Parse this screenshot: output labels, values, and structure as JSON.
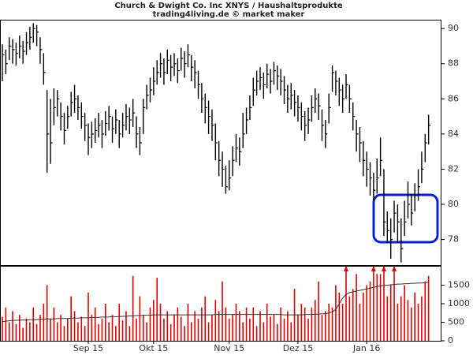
{
  "chart_data": [
    {
      "type": "ohlc",
      "title": "Church & Dwight Co. Inc XNYS / Haushaltsprodukte",
      "subtitle": "trading4living.de © market maker",
      "categories": [
        null,
        null,
        null,
        null,
        null,
        null,
        null,
        null,
        null,
        null,
        null,
        null,
        null,
        null,
        null,
        null,
        null,
        null,
        null,
        null,
        null,
        null,
        null,
        null,
        null,
        "Sep 15",
        null,
        null,
        null,
        null,
        null,
        null,
        null,
        null,
        null,
        null,
        null,
        null,
        null,
        null,
        null,
        null,
        null,
        null,
        "Okt 15",
        null,
        null,
        null,
        null,
        null,
        null,
        null,
        null,
        null,
        null,
        null,
        null,
        null,
        null,
        null,
        null,
        null,
        null,
        null,
        null,
        null,
        "Nov 15",
        null,
        null,
        null,
        null,
        null,
        null,
        null,
        null,
        null,
        null,
        null,
        null,
        null,
        null,
        null,
        null,
        null,
        null,
        null,
        "Dez 15",
        null,
        null,
        null,
        null,
        null,
        null,
        null,
        null,
        null,
        null,
        null,
        null,
        null,
        null,
        null,
        null,
        null,
        null,
        null,
        "Jan 16",
        null,
        null,
        null,
        null,
        null,
        null,
        null,
        null,
        null,
        null,
        null,
        null,
        null,
        null,
        null,
        null,
        null,
        null
      ],
      "high": [
        89.1,
        88.8,
        89.5,
        89.4,
        89.2,
        89.6,
        89.3,
        89.8,
        90.1,
        90.3,
        90.2,
        89.5,
        88.6,
        86.5,
        86.0,
        86.6,
        86.5,
        85.8,
        85.2,
        85.6,
        86.4,
        86.8,
        86.2,
        85.8,
        85.2,
        84.6,
        84.7,
        84.9,
        85.2,
        84.8,
        85.3,
        85.6,
        85.0,
        85.4,
        84.8,
        85.2,
        85.7,
        85.5,
        86.0,
        85.0,
        84.4,
        86.0,
        86.8,
        87.2,
        87.8,
        88.2,
        88.6,
        88.3,
        88.8,
        88.5,
        88.6,
        88.3,
        88.9,
        88.7,
        89.1,
        88.5,
        88.2,
        87.6,
        86.9,
        86.3,
        85.9,
        85.4,
        84.6,
        83.6,
        83.0,
        82.2,
        82.5,
        83.3,
        84.0,
        83.8,
        85.2,
        85.5,
        86.2,
        87.2,
        87.6,
        87.8,
        87.5,
        88.0,
        87.7,
        88.1,
        87.9,
        87.7,
        87.3,
        86.8,
        86.9,
        86.5,
        86.2,
        85.8,
        85.3,
        85.5,
        86.2,
        86.6,
        86.3,
        85.4,
        84.8,
        86.3,
        87.9,
        87.6,
        87.2,
        86.8,
        87.4,
        86.8,
        85.8,
        84.8,
        84.4,
        83.6,
        83.0,
        82.4,
        81.8,
        82.6,
        83.8,
        82.0,
        79.6,
        79.2,
        80.2,
        80.0,
        79.2,
        80.2,
        81.3,
        80.6,
        81.2,
        82.0,
        83.0,
        84.0,
        85.1
      ],
      "low": [
        87.0,
        87.4,
        88.2,
        88.0,
        87.9,
        88.3,
        88.0,
        88.5,
        88.8,
        89.2,
        89.0,
        88.0,
        86.8,
        81.8,
        82.3,
        84.5,
        85.0,
        84.2,
        83.4,
        84.3,
        85.0,
        85.2,
        84.8,
        84.3,
        83.6,
        82.8,
        83.2,
        83.5,
        83.8,
        83.2,
        83.9,
        84.2,
        83.5,
        84.0,
        83.2,
        83.8,
        84.2,
        84.0,
        84.4,
        83.2,
        82.8,
        84.0,
        85.4,
        85.8,
        86.2,
        86.8,
        87.2,
        86.8,
        87.4,
        87.0,
        87.3,
        86.9,
        87.6,
        87.2,
        87.8,
        87.0,
        86.6,
        86.0,
        85.2,
        84.6,
        84.0,
        83.6,
        82.5,
        81.6,
        81.0,
        80.6,
        80.8,
        81.6,
        82.4,
        82.2,
        83.2,
        84.0,
        84.8,
        85.6,
        86.2,
        86.5,
        86.0,
        86.6,
        86.3,
        86.8,
        86.5,
        86.2,
        85.7,
        85.2,
        85.4,
        85.0,
        84.7,
        84.2,
        83.6,
        84.0,
        84.7,
        85.2,
        84.8,
        83.6,
        83.2,
        84.6,
        86.4,
        86.2,
        85.6,
        85.2,
        86.0,
        85.2,
        84.2,
        83.0,
        82.4,
        81.6,
        81.0,
        80.5,
        80.2,
        80.6,
        81.6,
        78.2,
        77.8,
        76.9,
        78.4,
        77.8,
        76.7,
        78.2,
        79.2,
        78.8,
        79.6,
        80.2,
        81.2,
        82.4,
        83.4
      ],
      "close": [
        88.5,
        88.0,
        89.0,
        88.8,
        88.6,
        89.0,
        88.7,
        89.2,
        89.5,
        90.0,
        89.8,
        88.8,
        87.5,
        84.0,
        83.5,
        85.5,
        86.0,
        85.0,
        84.2,
        85.0,
        85.8,
        86.0,
        85.5,
        85.0,
        84.5,
        83.8,
        84.0,
        84.2,
        84.5,
        84.0,
        84.6,
        85.0,
        84.3,
        84.8,
        84.0,
        84.5,
        85.0,
        84.8,
        85.2,
        84.0,
        83.5,
        85.5,
        86.2,
        86.5,
        87.0,
        87.5,
        88.0,
        87.5,
        88.2,
        87.8,
        88.0,
        87.6,
        88.3,
        88.0,
        88.5,
        87.8,
        87.5,
        86.8,
        86.0,
        85.5,
        85.0,
        84.5,
        83.5,
        82.5,
        82.0,
        81.0,
        81.5,
        82.5,
        83.2,
        83.0,
        84.0,
        84.8,
        85.5,
        86.5,
        87.0,
        87.2,
        86.8,
        87.4,
        87.0,
        87.6,
        87.3,
        87.0,
        86.5,
        86.0,
        86.2,
        85.8,
        85.5,
        85.0,
        84.5,
        84.8,
        85.5,
        86.0,
        85.6,
        84.5,
        84.0,
        85.5,
        87.5,
        87.0,
        86.5,
        86.0,
        86.8,
        86.0,
        85.0,
        84.0,
        83.5,
        82.5,
        82.0,
        81.5,
        80.8,
        81.5,
        82.5,
        79.0,
        78.5,
        78.0,
        79.5,
        79.0,
        77.5,
        79.0,
        80.0,
        79.5,
        80.5,
        81.0,
        82.0,
        83.5,
        84.5
      ],
      "color": "#000000",
      "ylim": [
        76.5,
        90.5
      ],
      "yticks": [
        78,
        80,
        82,
        84,
        86,
        88,
        90
      ]
    },
    {
      "type": "bar",
      "series": [
        {
          "color": "#e00000",
          "values": [
            650,
            900,
            500,
            800,
            450,
            700,
            350,
            600,
            500,
            900,
            450,
            700,
            1000,
            1500,
            600,
            900,
            500,
            700,
            400,
            600,
            1200,
            800,
            500,
            650,
            400,
            1300,
            700,
            900,
            450,
            600,
            1000,
            500,
            700,
            400,
            1000,
            550,
            800,
            400,
            1750,
            600,
            1200,
            700,
            500,
            900,
            1100,
            1700,
            1000,
            600,
            800,
            450,
            700,
            900,
            650,
            400,
            1000,
            500,
            800,
            600,
            900,
            1200,
            500,
            700,
            1100,
            800,
            1600,
            900,
            600,
            700,
            1000,
            800,
            500,
            900,
            600,
            900,
            400,
            800,
            500,
            1000,
            650,
            700,
            450,
            900,
            600,
            800,
            500,
            1400,
            700,
            1000,
            900,
            600,
            900,
            1100,
            1600,
            700,
            800,
            1000,
            900,
            1500,
            1300,
            1000,
            2100,
            1200,
            1400,
            1800,
            1000,
            1300,
            1500,
            1600,
            2100,
            1800,
            1800,
            2100,
            1200,
            1500,
            2100,
            1000,
            1200,
            1500,
            1100,
            900,
            1300,
            1000,
            1200,
            1600,
            1750
          ]
        },
        {
          "type": "line",
          "color": "#333333",
          "values": [
            520,
            530,
            540,
            550,
            550,
            560,
            560,
            560,
            570,
            570,
            570,
            580,
            580,
            590,
            590,
            590,
            600,
            600,
            600,
            600,
            610,
            610,
            610,
            620,
            620,
            620,
            630,
            630,
            630,
            640,
            640,
            640,
            650,
            650,
            650,
            660,
            660,
            670,
            670,
            680,
            680,
            690,
            690,
            690,
            700,
            700,
            700,
            700,
            700,
            700,
            700,
            700,
            700,
            700,
            700,
            700,
            700,
            700,
            700,
            700,
            700,
            700,
            710,
            710,
            710,
            710,
            710,
            710,
            710,
            710,
            710,
            710,
            710,
            710,
            710,
            710,
            710,
            710,
            710,
            710,
            710,
            710,
            700,
            700,
            700,
            700,
            700,
            700,
            710,
            710,
            710,
            720,
            720,
            730,
            730,
            750,
            780,
            850,
            1000,
            1150,
            1250,
            1300,
            1320,
            1340,
            1360,
            1380,
            1400,
            1420,
            1440,
            1460,
            1480,
            1490,
            1500,
            1510,
            1520,
            1530,
            1530,
            1540,
            1540,
            1550,
            1550,
            1560,
            1560,
            1570,
            1580
          ]
        }
      ],
      "ylim": [
        0,
        2000
      ],
      "yticks": [
        0,
        500,
        1000,
        1500
      ]
    }
  ]
}
